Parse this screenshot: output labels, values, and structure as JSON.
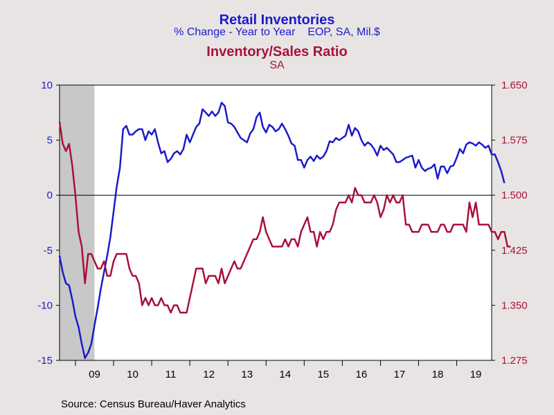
{
  "chart_data": {
    "type": "line",
    "title": "Retail Inventories",
    "subtitle": "% Change - Year to Year    EOP, SA, Mil.$",
    "title2": "Inventory/Sales Ratio",
    "subtitle2": "SA",
    "source": "Source:  Census Bureau/Haver Analytics",
    "x_start": "2008-08",
    "x_end": "2019-12",
    "x_ticks": [
      "09",
      "10",
      "11",
      "12",
      "13",
      "14",
      "15",
      "16",
      "17",
      "18",
      "19"
    ],
    "recession": {
      "start": "2008-08",
      "end": "2009-06"
    },
    "y_left": {
      "ylim": [
        -15,
        10
      ],
      "ticks": [
        "10",
        "5",
        "0",
        "-5",
        "-10",
        "-15"
      ],
      "color": "#1a1acc"
    },
    "y_right": {
      "ylim": [
        1.275,
        1.65
      ],
      "ticks": [
        "1.650",
        "1.575",
        "1.500",
        "1.425",
        "1.350",
        "1.275"
      ],
      "color": "#a8113a"
    },
    "grid": false,
    "series": [
      {
        "axis": "left",
        "color": "#1a1acc",
        "start": "2008-08",
        "values": [
          -5.5,
          -7,
          -8,
          -8.2,
          -9.5,
          -11,
          -12,
          -13.5,
          -14.8,
          -14.3,
          -13.5,
          -11.8,
          -10.2,
          -8.5,
          -7,
          -5.5,
          -3.8,
          -1.5,
          0.8,
          2.5,
          6,
          6.3,
          5.5,
          5.5,
          5.8,
          6,
          6,
          5,
          5.8,
          5.5,
          6,
          4.8,
          3.8,
          4,
          3,
          3.3,
          3.8,
          4,
          3.7,
          4.2,
          5.5,
          4.8,
          5.5,
          6.2,
          6.5,
          7.8,
          7.5,
          7.2,
          7.6,
          7.2,
          7.5,
          8.4,
          8.1,
          6.6,
          6.5,
          6.2,
          5.7,
          5.2,
          5,
          4.8,
          5.6,
          6,
          7.1,
          7.5,
          6.2,
          5.7,
          6.4,
          6.2,
          5.8,
          6,
          6.5,
          6,
          5.4,
          4.7,
          4.5,
          3.2,
          3.2,
          2.5,
          3.2,
          3.5,
          3.1,
          3.6,
          3.3,
          3.5,
          4,
          4.9,
          4.8,
          5.2,
          5,
          5.2,
          5.4,
          6.4,
          5.4,
          6.1,
          5.8,
          5,
          4.5,
          4.8,
          4.6,
          4.2,
          3.6,
          4.5,
          4.1,
          4.3,
          4,
          3.7,
          3,
          3,
          3.2,
          3.4,
          3.5,
          3.6,
          2.5,
          3.2,
          2.5,
          2.2,
          2.4,
          2.5,
          2.8,
          1.5,
          2.6,
          2.6,
          2,
          2.6,
          2.7,
          3.4,
          4.2,
          3.8,
          4.6,
          4.8,
          4.7,
          4.5,
          4.8,
          4.6,
          4.3,
          4.5,
          3.7,
          3.7,
          3,
          2.2,
          1.1
        ]
      },
      {
        "axis": "right",
        "color": "#a8113a",
        "start": "2008-08",
        "values": [
          1.6,
          1.57,
          1.56,
          1.57,
          1.54,
          1.5,
          1.45,
          1.43,
          1.38,
          1.42,
          1.42,
          1.41,
          1.4,
          1.4,
          1.41,
          1.39,
          1.39,
          1.41,
          1.42,
          1.42,
          1.42,
          1.42,
          1.4,
          1.39,
          1.39,
          1.38,
          1.35,
          1.36,
          1.35,
          1.36,
          1.35,
          1.35,
          1.36,
          1.35,
          1.35,
          1.34,
          1.35,
          1.35,
          1.34,
          1.34,
          1.34,
          1.36,
          1.38,
          1.4,
          1.4,
          1.4,
          1.38,
          1.39,
          1.39,
          1.39,
          1.38,
          1.4,
          1.38,
          1.39,
          1.4,
          1.41,
          1.4,
          1.4,
          1.41,
          1.42,
          1.43,
          1.44,
          1.44,
          1.45,
          1.47,
          1.45,
          1.44,
          1.43,
          1.43,
          1.43,
          1.43,
          1.44,
          1.43,
          1.44,
          1.44,
          1.43,
          1.45,
          1.46,
          1.47,
          1.45,
          1.45,
          1.43,
          1.45,
          1.44,
          1.45,
          1.45,
          1.46,
          1.48,
          1.49,
          1.49,
          1.49,
          1.5,
          1.49,
          1.51,
          1.5,
          1.5,
          1.49,
          1.49,
          1.49,
          1.5,
          1.49,
          1.47,
          1.48,
          1.5,
          1.49,
          1.5,
          1.49,
          1.49,
          1.5,
          1.46,
          1.46,
          1.45,
          1.45,
          1.45,
          1.46,
          1.46,
          1.46,
          1.45,
          1.45,
          1.45,
          1.46,
          1.46,
          1.45,
          1.45,
          1.46,
          1.46,
          1.46,
          1.46,
          1.45,
          1.49,
          1.47,
          1.49,
          1.46,
          1.46,
          1.46,
          1.46,
          1.45,
          1.45,
          1.44,
          1.45,
          1.45,
          1.43,
          1.43
        ]
      }
    ]
  }
}
